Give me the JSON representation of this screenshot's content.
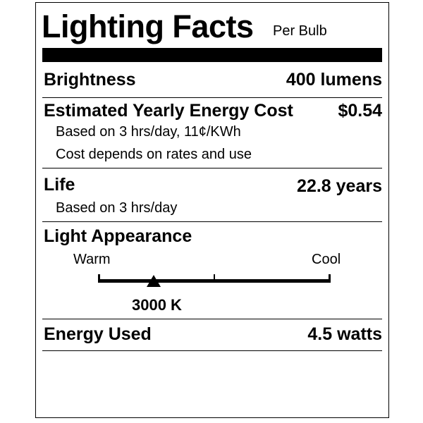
{
  "title": "Lighting Facts",
  "subtitle": "Per Bulb",
  "brightness": {
    "label": "Brightness",
    "value": "400 lumens"
  },
  "cost": {
    "label": "Estimated Yearly Energy Cost",
    "value": "$0.54",
    "note1": "Based on 3 hrs/day, 11¢/KWh",
    "note2": "Cost depends on rates and use"
  },
  "life": {
    "label": "Life",
    "value": "22.8 years",
    "note": "Based on 3 hrs/day"
  },
  "appearance": {
    "label": "Light Appearance",
    "warm": "Warm",
    "cool": "Cool",
    "value": "3000 K",
    "position_fraction": 0.24
  },
  "energy": {
    "label": "Energy Used",
    "value": "4.5 watts"
  }
}
